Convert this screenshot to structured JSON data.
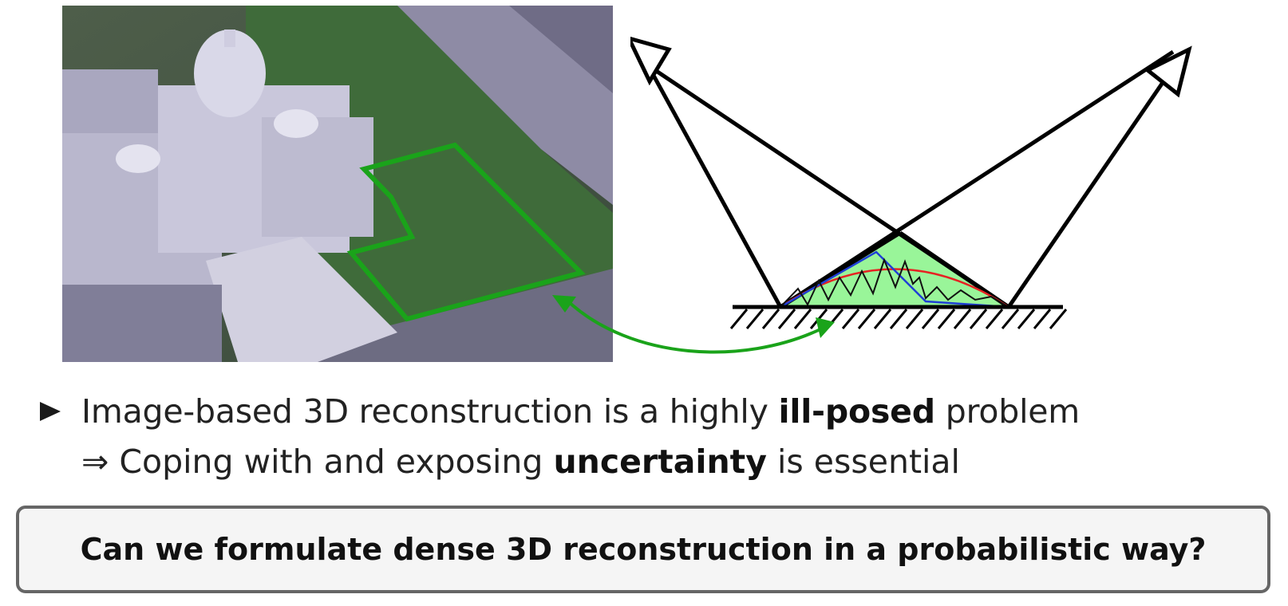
{
  "content": {
    "line1_pre": "Image-based 3D reconstruction is a highly ",
    "line1_bold": "ill-posed",
    "line1_post": " problem",
    "line2_arrow": "⇒",
    "line2_pre": " Coping with and exposing ",
    "line2_bold": "uncertainty",
    "line2_post": " is essential",
    "question": "Can we formulate dense 3D reconstruction in a probabilistic way?"
  },
  "colors": {
    "region_outline": "#1aa31a",
    "region_fill": "#99f599",
    "link_arrow": "#1aa31a",
    "curve_red": "#e62222",
    "curve_blue": "#1f3fd6",
    "curve_black": "#111111"
  }
}
